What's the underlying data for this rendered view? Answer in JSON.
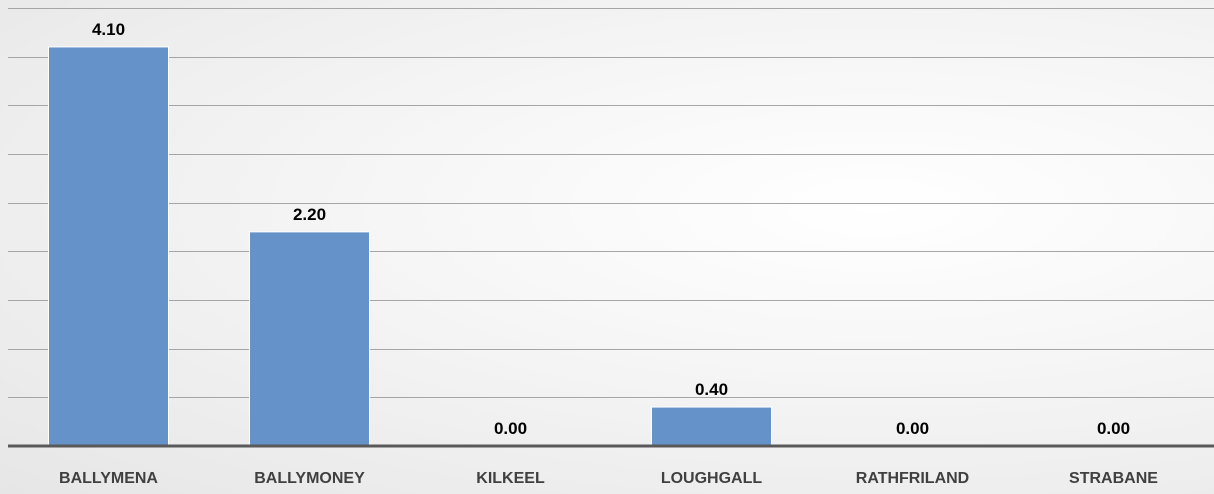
{
  "chart_data": {
    "type": "bar",
    "categories": [
      "BALLYMENA",
      "BALLYMONEY",
      "KILKEEL",
      "LOUGHGALL",
      "RATHFRILAND",
      "STRABANE"
    ],
    "values": [
      4.1,
      2.2,
      0.0,
      0.4,
      0.0,
      0.0
    ],
    "data_labels": [
      "4.10",
      "2.20",
      "0.00",
      "0.40",
      "0.00",
      "0.00"
    ],
    "title": "",
    "xlabel": "",
    "ylabel": "",
    "ylim": [
      0,
      4.5
    ],
    "grid": true,
    "legend": "none",
    "colors": {
      "bar": "#6592c8",
      "gridline": "#a6a6a6",
      "axis": "#595959",
      "label": "#000000",
      "tick": "#404040"
    }
  }
}
